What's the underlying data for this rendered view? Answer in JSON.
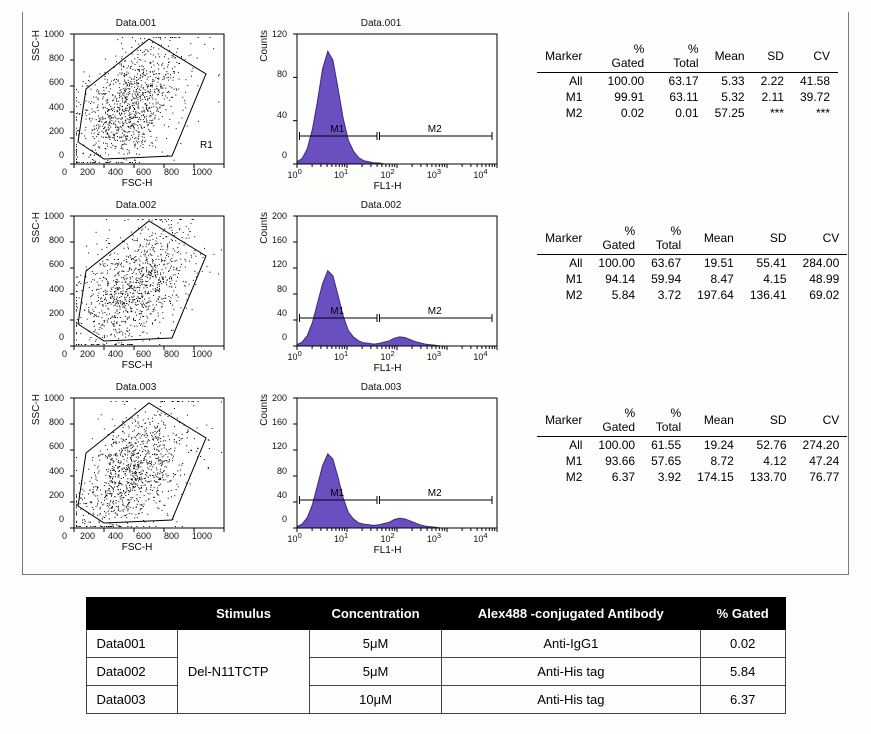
{
  "panels": [
    {
      "title": "Data.001",
      "scatter": {
        "xlabel": "FSC-H",
        "ylabel": "SSC-H",
        "xlim": [
          0,
          1000
        ],
        "ylim": [
          0,
          1000
        ],
        "tick_step": 200,
        "gate_label": "R1",
        "gate_points": [
          [
            4,
            22
          ],
          [
            30,
            5
          ],
          [
            98,
            8
          ],
          [
            132,
            90
          ],
          [
            75,
            125
          ],
          [
            12,
            75
          ]
        ],
        "center": [
          55,
          55
        ],
        "spread": 28,
        "n": 1100
      },
      "hist": {
        "xlabel": "FL1-H",
        "ylabel": "Counts",
        "ymax": 120,
        "ytick_step": 40,
        "xlog_ticks": [
          0,
          1,
          2,
          3,
          4
        ],
        "m1_region": [
          0.05,
          1.6
        ],
        "m2_region": [
          1.65,
          3.9
        ],
        "fill": "#6a4fc1",
        "border": "#3b2d7a",
        "profile": [
          2,
          5,
          14,
          32,
          58,
          88,
          104,
          96,
          70,
          42,
          22,
          12,
          6,
          3,
          2,
          1,
          1,
          0,
          0,
          0,
          0,
          0,
          0,
          0,
          0,
          0,
          0,
          0,
          0,
          0,
          0,
          0,
          0,
          0,
          0,
          0,
          0,
          0,
          0,
          0
        ]
      },
      "stats": {
        "headers": [
          "Marker",
          "% Gated",
          "% Total",
          "Mean",
          "SD",
          "CV"
        ],
        "rows": [
          [
            "All",
            "100.00",
            "63.17",
            "5.33",
            "2.22",
            "41.58"
          ],
          [
            "M1",
            "99.91",
            "63.11",
            "5.32",
            "2.11",
            "39.72"
          ],
          [
            "M2",
            "0.02",
            "0.01",
            "57.25",
            "***",
            "***"
          ]
        ]
      }
    },
    {
      "title": "Data.002",
      "scatter": {
        "xlabel": "FSC-H",
        "ylabel": "SSC-H",
        "xlim": [
          0,
          1000
        ],
        "ylim": [
          0,
          1000
        ],
        "tick_step": 200,
        "gate_label": "",
        "gate_points": [
          [
            4,
            22
          ],
          [
            30,
            5
          ],
          [
            98,
            8
          ],
          [
            132,
            90
          ],
          [
            75,
            125
          ],
          [
            12,
            75
          ]
        ],
        "center": [
          60,
          55
        ],
        "spread": 30,
        "n": 1100
      },
      "hist": {
        "xlabel": "FL1-H",
        "ylabel": "Counts",
        "ymax": 200,
        "ytick_step": 40,
        "xlog_ticks": [
          0,
          1,
          2,
          3,
          4
        ],
        "m1_region": [
          0.05,
          1.6
        ],
        "m2_region": [
          1.65,
          3.9
        ],
        "fill": "#6a4fc1",
        "border": "#3b2d7a",
        "profile": [
          2,
          6,
          16,
          36,
          66,
          96,
          116,
          108,
          78,
          46,
          24,
          14,
          8,
          5,
          4,
          3,
          4,
          6,
          8,
          12,
          14,
          13,
          10,
          7,
          5,
          3,
          2,
          1,
          0,
          0,
          0,
          0,
          0,
          0,
          0,
          0,
          0,
          0,
          0,
          0
        ]
      },
      "stats": {
        "headers": [
          "Marker",
          "% Gated",
          "% Total",
          "Mean",
          "SD",
          "CV"
        ],
        "rows": [
          [
            "All",
            "100.00",
            "63.67",
            "19.51",
            "55.41",
            "284.00"
          ],
          [
            "M1",
            "94.14",
            "59.94",
            "8.47",
            "4.15",
            "48.99"
          ],
          [
            "M2",
            "5.84",
            "3.72",
            "197.64",
            "136.41",
            "69.02"
          ]
        ]
      }
    },
    {
      "title": "Data.003",
      "scatter": {
        "xlabel": "FSC-H",
        "ylabel": "SSC-H",
        "xlim": [
          0,
          1000
        ],
        "ylim": [
          0,
          1000
        ],
        "tick_step": 200,
        "gate_label": "",
        "gate_points": [
          [
            4,
            22
          ],
          [
            30,
            5
          ],
          [
            98,
            8
          ],
          [
            132,
            90
          ],
          [
            75,
            125
          ],
          [
            12,
            75
          ]
        ],
        "center": [
          58,
          52
        ],
        "spread": 30,
        "n": 1100
      },
      "hist": {
        "xlabel": "FL1-H",
        "ylabel": "Counts",
        "ymax": 200,
        "ytick_step": 40,
        "xlog_ticks": [
          0,
          1,
          2,
          3,
          4
        ],
        "m1_region": [
          0.05,
          1.6
        ],
        "m2_region": [
          1.65,
          3.9
        ],
        "fill": "#6a4fc1",
        "border": "#3b2d7a",
        "profile": [
          2,
          6,
          16,
          36,
          66,
          96,
          114,
          106,
          78,
          46,
          24,
          14,
          8,
          6,
          5,
          4,
          5,
          7,
          9,
          13,
          15,
          14,
          11,
          8,
          5,
          3,
          2,
          1,
          0,
          0,
          0,
          0,
          0,
          0,
          0,
          0,
          0,
          0,
          0,
          0
        ]
      },
      "stats": {
        "headers": [
          "Marker",
          "% Gated",
          "% Total",
          "Mean",
          "SD",
          "CV"
        ],
        "rows": [
          [
            "All",
            "100.00",
            "61.55",
            "19.24",
            "52.76",
            "274.20"
          ],
          [
            "M1",
            "93.66",
            "57.65",
            "8.72",
            "4.12",
            "47.24"
          ],
          [
            "M2",
            "6.37",
            "3.92",
            "174.15",
            "133.70",
            "76.77"
          ]
        ]
      }
    }
  ],
  "summary": {
    "headers": [
      "",
      "Stimulus",
      "Concentration",
      "Alex488 -conjugated Antibody",
      "% Gated"
    ],
    "stimulus": "Del-N11TCTP",
    "rows": [
      {
        "id": "Data001",
        "conc": "5μM",
        "ab": "Anti-IgG1",
        "gated": "0.02"
      },
      {
        "id": "Data002",
        "conc": "5μM",
        "ab": "Anti-His tag",
        "gated": "5.84"
      },
      {
        "id": "Data003",
        "conc": "10μM",
        "ab": "Anti-His tag",
        "gated": "6.37"
      }
    ]
  },
  "dims": {
    "scatter_w": 150,
    "scatter_h": 130,
    "hist_w": 200,
    "hist_h": 130
  }
}
